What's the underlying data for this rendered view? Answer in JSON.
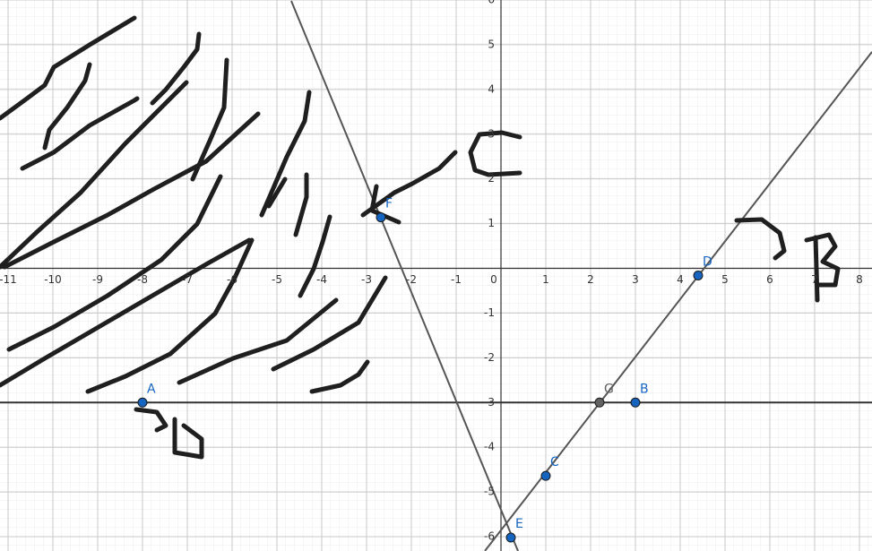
{
  "chart_data": {
    "type": "scatter",
    "xlim": [
      -11.18,
      8.28
    ],
    "ylim": [
      -6.32,
      6.0
    ],
    "xticks": [
      -11,
      -10,
      -9,
      -8,
      -7,
      -6,
      -5,
      -4,
      -3,
      -2,
      -1,
      0,
      1,
      2,
      3,
      4,
      5,
      6,
      7,
      8
    ],
    "yticks": [
      -6,
      -5,
      -4,
      -3,
      -2,
      -1,
      1,
      2,
      3,
      4,
      5,
      6
    ],
    "grid": true,
    "points": [
      {
        "label": "A",
        "x": -8,
        "y": -3,
        "color": "#1565c0"
      },
      {
        "label": "B",
        "x": 3,
        "y": -3,
        "color": "#1565c0"
      },
      {
        "label": "C",
        "x": 1,
        "y": -4.64,
        "color": "#1565c0"
      },
      {
        "label": "D",
        "x": 4.4,
        "y": -0.16,
        "color": "#1565c0"
      },
      {
        "label": "E",
        "x": 0.22,
        "y": -6.02,
        "color": "#1565c0"
      },
      {
        "label": "F",
        "x": -2.68,
        "y": 1.14,
        "color": "#1565c0"
      },
      {
        "label": "G",
        "x": 2.2,
        "y": -3,
        "color": "#616161"
      }
    ],
    "lines": [
      {
        "x": [
          -11.18,
          8.28
        ],
        "y": [
          -3,
          -3
        ],
        "color": "#333333"
      },
      {
        "x": [
          -4.68,
          0.38
        ],
        "y": [
          5.98,
          -6.32
        ],
        "color": "#555555"
      },
      {
        "x": [
          -0.36,
          8.28
        ],
        "y": [
          -6.32,
          4.84
        ],
        "color": "#555555"
      }
    ]
  }
}
